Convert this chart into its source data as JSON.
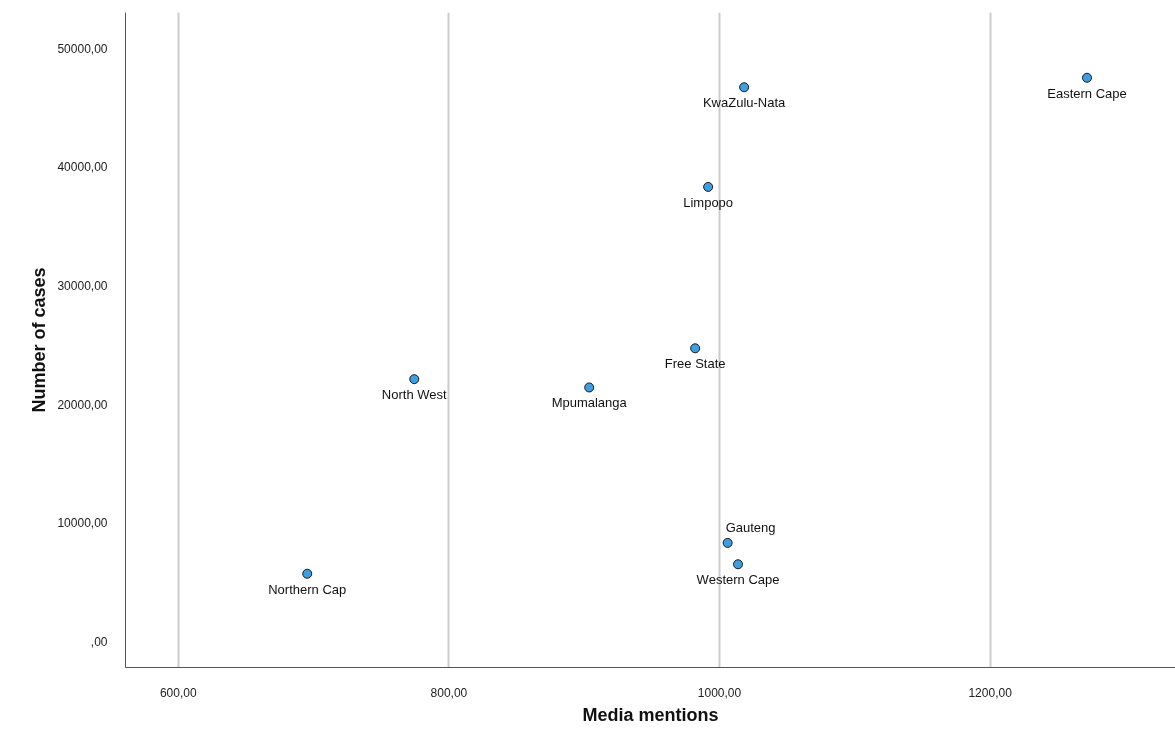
{
  "chart_data": {
    "type": "scatter",
    "xlabel": "Media mentions",
    "ylabel": "Number of cases",
    "x": [
      695.3,
      774.4,
      903.7,
      982.0,
      991.6,
      1018.2,
      1271.6,
      1006.0,
      1013.7
    ],
    "values": [
      5700,
      22100,
      21400,
      24700,
      38300,
      46700,
      47500,
      8300,
      6500
    ],
    "color": "#3d9fe3",
    "marker": "circle",
    "grid": "x",
    "xlim": [
      561,
      1337
    ],
    "ylim": [
      -2200,
      53000
    ],
    "xticks": [
      {
        "value": 600,
        "label": "600,00"
      },
      {
        "value": 800,
        "label": "800,00"
      },
      {
        "value": 1000,
        "label": "1000,00"
      },
      {
        "value": 1200,
        "label": "1200,00"
      }
    ],
    "yticks": [
      {
        "value": 0,
        "label": ",00"
      },
      {
        "value": 10000,
        "label": "10000,00"
      },
      {
        "value": 20000,
        "label": "20000,00"
      },
      {
        "value": 30000,
        "label": "30000,00"
      },
      {
        "value": 40000,
        "label": "40000,00"
      },
      {
        "value": 50000,
        "label": "50000,00"
      }
    ],
    "annotations": [
      {
        "text": "Northern Cap",
        "x": 695.3,
        "y": 5700
      },
      {
        "text": "North West",
        "x": 774.4,
        "y": 22100
      },
      {
        "text": "Mpumalanga",
        "x": 903.7,
        "y": 21400
      },
      {
        "text": "Free State",
        "x": 982.0,
        "y": 24700
      },
      {
        "text": "Limpopo",
        "x": 991.6,
        "y": 38300
      },
      {
        "text": "KwaZulu-Nata",
        "x": 1018.2,
        "y": 46700
      },
      {
        "text": "Eastern Cape",
        "x": 1271.6,
        "y": 47500
      },
      {
        "text": "Gauteng",
        "x": 1006.0,
        "y": 8300
      },
      {
        "text": "Western Cape",
        "x": 1013.7,
        "y": 6500
      }
    ]
  }
}
